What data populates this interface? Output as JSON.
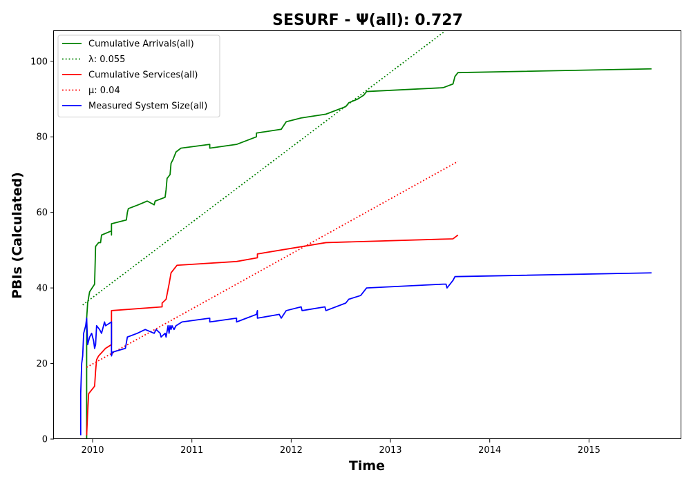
{
  "chart_data": {
    "type": "line",
    "title": "SESURF -  Ψ(all): 0.727",
    "xlabel": "Time",
    "ylabel": "PBIs (Calculated)",
    "xlim": [
      2009.61,
      2015.93
    ],
    "ylim": [
      0,
      108
    ],
    "x_ticks": [
      2010,
      2011,
      2012,
      2013,
      2014,
      2015
    ],
    "x_tick_labels": [
      "2010",
      "2011",
      "2012",
      "2013",
      "2014",
      "2015"
    ],
    "y_ticks": [
      0,
      20,
      40,
      60,
      80,
      100
    ],
    "y_tick_labels": [
      "0",
      "20",
      "40",
      "60",
      "80",
      "100"
    ],
    "grid": false,
    "legend_position": "top-left",
    "series": [
      {
        "name": "Cumulative Arrivals(all)",
        "color": "#008000",
        "style": "solid",
        "points": [
          [
            2009.94,
            0
          ],
          [
            2009.94,
            32
          ],
          [
            2009.95,
            36
          ],
          [
            2009.97,
            39
          ],
          [
            2010.02,
            41
          ],
          [
            2010.03,
            51
          ],
          [
            2010.06,
            52
          ],
          [
            2010.08,
            52
          ],
          [
            2010.09,
            54
          ],
          [
            2010.18,
            55
          ],
          [
            2010.19,
            55
          ],
          [
            2010.19,
            54
          ],
          [
            2010.19,
            57
          ],
          [
            2010.34,
            58
          ],
          [
            2010.35,
            60
          ],
          [
            2010.36,
            61
          ],
          [
            2010.46,
            62
          ],
          [
            2010.55,
            63
          ],
          [
            2010.62,
            62
          ],
          [
            2010.63,
            63
          ],
          [
            2010.73,
            64
          ],
          [
            2010.74,
            66
          ],
          [
            2010.75,
            69
          ],
          [
            2010.78,
            70
          ],
          [
            2010.79,
            73
          ],
          [
            2010.81,
            74
          ],
          [
            2010.84,
            76
          ],
          [
            2010.89,
            77
          ],
          [
            2011.18,
            78
          ],
          [
            2011.18,
            77
          ],
          [
            2011.45,
            78
          ],
          [
            2011.65,
            80
          ],
          [
            2011.65,
            81
          ],
          [
            2011.9,
            82
          ],
          [
            2011.95,
            84
          ],
          [
            2012.1,
            85
          ],
          [
            2012.35,
            86
          ],
          [
            2012.55,
            88
          ],
          [
            2012.58,
            89
          ],
          [
            2012.67,
            90
          ],
          [
            2012.73,
            91
          ],
          [
            2012.76,
            92
          ],
          [
            2013.53,
            93
          ],
          [
            2013.63,
            94
          ],
          [
            2013.65,
            96
          ],
          [
            2013.68,
            97
          ],
          [
            2015.63,
            98
          ]
        ]
      },
      {
        "name": "λ: 0.055",
        "color": "#008000",
        "style": "dotted",
        "points": [
          [
            2009.9,
            35.5
          ],
          [
            2013.55,
            108
          ]
        ]
      },
      {
        "name": "Cumulative Services(all)",
        "color": "#ff0000",
        "style": "solid",
        "points": [
          [
            2009.94,
            1
          ],
          [
            2009.95,
            7
          ],
          [
            2009.96,
            12
          ],
          [
            2010.02,
            14
          ],
          [
            2010.03,
            18
          ],
          [
            2010.04,
            21
          ],
          [
            2010.06,
            22
          ],
          [
            2010.13,
            24
          ],
          [
            2010.19,
            25
          ],
          [
            2010.19,
            34
          ],
          [
            2010.7,
            35
          ],
          [
            2010.7,
            36
          ],
          [
            2010.74,
            37
          ],
          [
            2010.77,
            41
          ],
          [
            2010.79,
            44
          ],
          [
            2010.85,
            46
          ],
          [
            2011.45,
            47
          ],
          [
            2011.66,
            48
          ],
          [
            2011.66,
            49
          ],
          [
            2012.35,
            52
          ],
          [
            2013.63,
            53
          ],
          [
            2013.68,
            54
          ]
        ]
      },
      {
        "name": "μ: 0.04",
        "color": "#ff0000",
        "style": "dotted",
        "points": [
          [
            2009.94,
            19
          ],
          [
            2013.68,
            73.5
          ]
        ]
      },
      {
        "name": "Measured System Size(all)",
        "color": "#0000ff",
        "style": "solid",
        "points": [
          [
            2009.88,
            1
          ],
          [
            2009.88,
            12
          ],
          [
            2009.89,
            20
          ],
          [
            2009.9,
            22
          ],
          [
            2009.91,
            28
          ],
          [
            2009.93,
            30
          ],
          [
            2009.94,
            32
          ],
          [
            2009.95,
            25
          ],
          [
            2009.97,
            27
          ],
          [
            2009.99,
            28
          ],
          [
            2010.01,
            26
          ],
          [
            2010.02,
            24
          ],
          [
            2010.03,
            25
          ],
          [
            2010.04,
            30
          ],
          [
            2010.07,
            29
          ],
          [
            2010.09,
            28
          ],
          [
            2010.11,
            30
          ],
          [
            2010.12,
            31
          ],
          [
            2010.13,
            30
          ],
          [
            2010.19,
            31
          ],
          [
            2010.19,
            22
          ],
          [
            2010.2,
            23
          ],
          [
            2010.33,
            24
          ],
          [
            2010.35,
            27
          ],
          [
            2010.45,
            28
          ],
          [
            2010.53,
            29
          ],
          [
            2010.62,
            28
          ],
          [
            2010.64,
            29
          ],
          [
            2010.68,
            28
          ],
          [
            2010.69,
            27
          ],
          [
            2010.73,
            28
          ],
          [
            2010.74,
            27
          ],
          [
            2010.76,
            30
          ],
          [
            2010.77,
            28
          ],
          [
            2010.78,
            30
          ],
          [
            2010.79,
            29
          ],
          [
            2010.8,
            30
          ],
          [
            2010.82,
            29
          ],
          [
            2010.84,
            30
          ],
          [
            2010.9,
            31
          ],
          [
            2011.18,
            32
          ],
          [
            2011.18,
            31
          ],
          [
            2011.45,
            32
          ],
          [
            2011.45,
            31
          ],
          [
            2011.55,
            32
          ],
          [
            2011.65,
            33
          ],
          [
            2011.66,
            34
          ],
          [
            2011.66,
            32
          ],
          [
            2011.88,
            33
          ],
          [
            2011.9,
            32
          ],
          [
            2011.95,
            34
          ],
          [
            2012.1,
            35
          ],
          [
            2012.11,
            34
          ],
          [
            2012.34,
            35
          ],
          [
            2012.35,
            34
          ],
          [
            2012.55,
            36
          ],
          [
            2012.58,
            37
          ],
          [
            2012.7,
            38
          ],
          [
            2012.73,
            39
          ],
          [
            2012.76,
            40
          ],
          [
            2013.53,
            41
          ],
          [
            2013.56,
            41
          ],
          [
            2013.57,
            40
          ],
          [
            2013.63,
            42
          ],
          [
            2013.65,
            43
          ],
          [
            2015.63,
            44
          ]
        ]
      }
    ]
  }
}
